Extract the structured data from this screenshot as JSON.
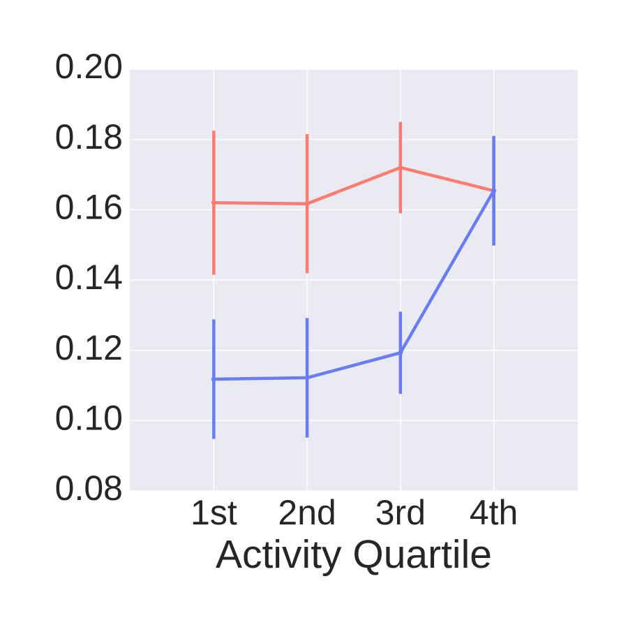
{
  "chart_data": {
    "type": "line",
    "x_label": "Activity Quartile",
    "categories": [
      "1st",
      "2nd",
      "3rd",
      "4th"
    ],
    "series": [
      {
        "color": "#fa7b6f",
        "values": [
          0.162,
          0.1617,
          0.172,
          0.1654
        ],
        "errors": [
          0.0205,
          0.0198,
          0.013,
          0.015
        ]
      },
      {
        "color": "#6a7cf2",
        "values": [
          0.1118,
          0.1122,
          0.1193,
          0.1654
        ],
        "errors": [
          0.017,
          0.017,
          0.0117,
          0.0156
        ]
      }
    ],
    "ylim": [
      0.08,
      0.2
    ],
    "yticks": [
      0.08,
      {
        "value": 0.1,
        "label": "0.10"
      },
      0.12,
      0.14,
      0.16,
      0.18,
      {
        "value": 0.2,
        "label": "0.20"
      }
    ],
    "grid": true
  }
}
